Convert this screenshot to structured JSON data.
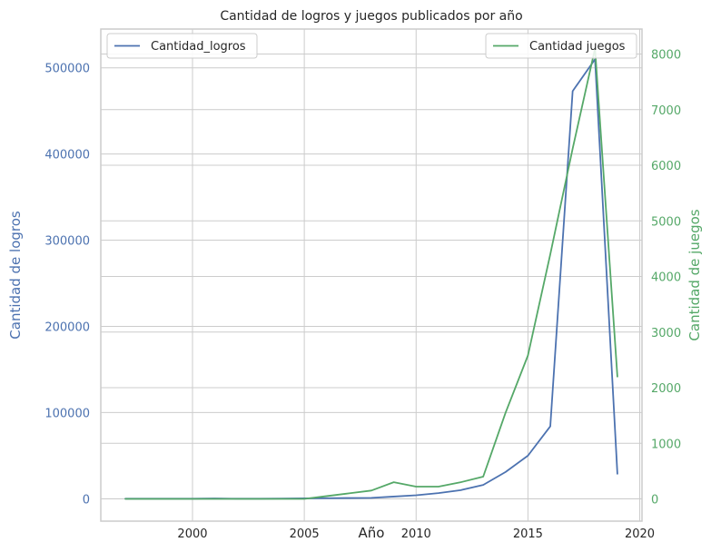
{
  "chart_data": {
    "type": "line",
    "title": "Cantidad de logros y juegos publicados por año",
    "xlabel": "Año",
    "ylabel_left": "Cantidad de logros",
    "ylabel_right": "Cantidad de juegos",
    "xlim": [
      1995.9,
      2020.1
    ],
    "ylim_left": [
      -26000,
      545000
    ],
    "ylim_right": [
      -400,
      8450
    ],
    "xticks": [
      2000,
      2005,
      2010,
      2015,
      2020
    ],
    "yticks_left": [
      0,
      100000,
      200000,
      300000,
      400000,
      500000
    ],
    "yticks_right": [
      0,
      1000,
      2000,
      3000,
      4000,
      5000,
      6000,
      7000,
      8000
    ],
    "grid": true,
    "legend_left": "top-left",
    "legend_right": "top-right",
    "x": [
      1997,
      1998,
      1999,
      2000,
      2001,
      2002,
      2003,
      2004,
      2005,
      2006,
      2007,
      2008,
      2009,
      2010,
      2011,
      2012,
      2013,
      2014,
      2015,
      2016,
      2017,
      2018,
      2019
    ],
    "series": [
      {
        "name": "Cantidad_logros",
        "axis": "left",
        "color": "#4c72b0",
        "values": [
          0,
          0,
          0,
          0,
          300,
          0,
          0,
          200,
          400,
          600,
          800,
          1000,
          2500,
          4000,
          6500,
          10000,
          16000,
          31000,
          50000,
          84000,
          473000,
          510000,
          29000
        ]
      },
      {
        "name": "Cantidad juegos",
        "axis": "right",
        "color": "#55a868",
        "values": [
          0,
          0,
          0,
          0,
          0,
          0,
          0,
          0,
          0,
          50,
          100,
          150,
          300,
          220,
          220,
          300,
          400,
          1550,
          2580,
          4400,
          6300,
          8100,
          2200
        ]
      }
    ],
    "colors": {
      "left_axis": "#4c72b0",
      "right_axis": "#55a868",
      "grid": "#cccccc",
      "spine": "#cccccc"
    }
  }
}
